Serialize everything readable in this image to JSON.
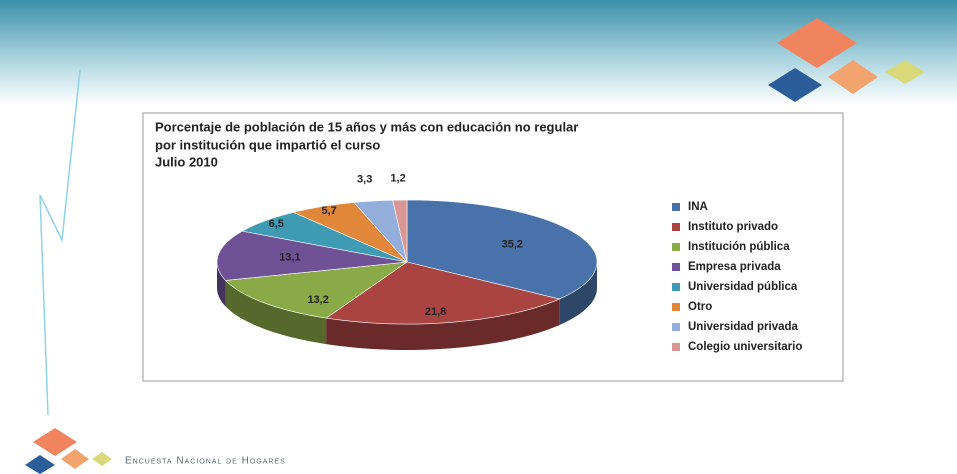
{
  "chart_data": {
    "type": "pie",
    "title_lines": [
      "Porcentaje de población de 15 años y más con educación no regular",
      "por institución que impartió el curso",
      "Julio 2010"
    ],
    "categories": [
      "INA",
      "Instituto privado",
      "Institución pública",
      "Empresa privada",
      "Universidad pública",
      "Otro",
      "Universidad privada",
      "Colegio universitario"
    ],
    "values": [
      35.2,
      21.8,
      13.2,
      13.1,
      6.5,
      5.7,
      3.3,
      1.2
    ],
    "value_labels": [
      "35,2",
      "21,8",
      "13,2",
      "13,1",
      "6,5",
      "5,7",
      "3,3",
      "1,2"
    ],
    "colors": [
      "#4a72aa",
      "#a94442",
      "#8aaa48",
      "#6f5296",
      "#3f9bb4",
      "#e0873a",
      "#94aedb",
      "#d99694"
    ],
    "legend": "right"
  },
  "footer": "Encuesta Nacional de Hogares"
}
